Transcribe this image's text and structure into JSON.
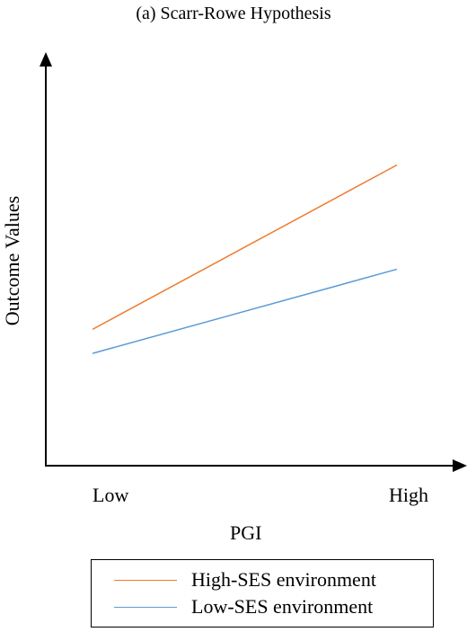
{
  "chart_data": {
    "type": "line",
    "title": "(a) Scarr-Rowe Hypothesis",
    "xlabel": "PGI",
    "ylabel": "Outcome Values",
    "categories": [
      "Low",
      "High"
    ],
    "ylim": [
      0,
      1
    ],
    "grid": false,
    "legend_position": "bottom",
    "series": [
      {
        "name": "High-SES environment",
        "values": [
          0.34,
          0.75
        ],
        "color": "#ed7d31"
      },
      {
        "name": "Low-SES environment",
        "values": [
          0.28,
          0.49
        ],
        "color": "#5b9bd5"
      }
    ]
  }
}
